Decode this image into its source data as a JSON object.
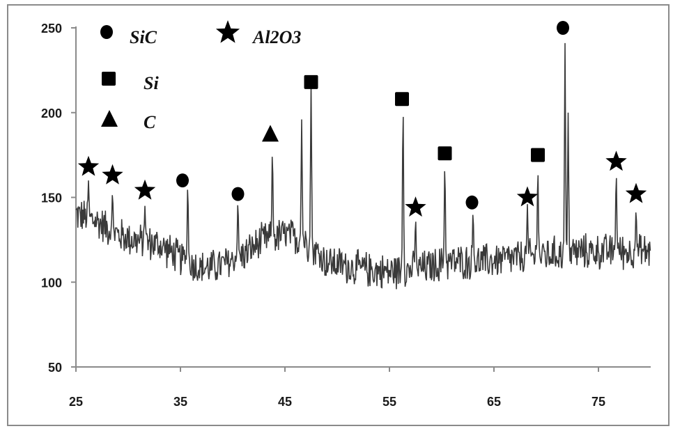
{
  "chart_data": {
    "type": "line",
    "title": "",
    "xlabel": "",
    "ylabel": "",
    "xlim": [
      25,
      80
    ],
    "ylim": [
      50,
      255
    ],
    "x_ticks": [
      25,
      35,
      45,
      55,
      65,
      75
    ],
    "y_ticks": [
      50,
      100,
      150,
      200,
      250
    ],
    "grid": false,
    "line_color": "#3a3a3a",
    "legend": {
      "placement": "top-left",
      "entries": [
        {
          "marker": "circle",
          "label": "SiC"
        },
        {
          "marker": "star",
          "label": "Al2O3"
        },
        {
          "marker": "square",
          "label": "Si"
        },
        {
          "marker": "triangle",
          "label": "C"
        }
      ]
    },
    "series": [
      {
        "baseline": [
          [
            25,
            140
          ],
          [
            27,
            136
          ],
          [
            29,
            128
          ],
          [
            31,
            124
          ],
          [
            33,
            122
          ],
          [
            35,
            114
          ],
          [
            37,
            108
          ],
          [
            39,
            110
          ],
          [
            41,
            116
          ],
          [
            43,
            125
          ],
          [
            45,
            128
          ],
          [
            47,
            124
          ],
          [
            49,
            112
          ],
          [
            52,
            108
          ],
          [
            55,
            106
          ],
          [
            58,
            108
          ],
          [
            61,
            112
          ],
          [
            64,
            112
          ],
          [
            67,
            114
          ],
          [
            70,
            116
          ],
          [
            73,
            118
          ],
          [
            76,
            118
          ],
          [
            80,
            118
          ]
        ],
        "noise_amplitude": 12,
        "peaks": [
          {
            "x": 26.2,
            "y": 160
          },
          {
            "x": 28.5,
            "y": 153
          },
          {
            "x": 31.6,
            "y": 145
          },
          {
            "x": 35.7,
            "y": 158
          },
          {
            "x": 40.5,
            "y": 148
          },
          {
            "x": 43.8,
            "y": 178
          },
          {
            "x": 46.6,
            "y": 196
          },
          {
            "x": 47.5,
            "y": 218
          },
          {
            "x": 56.3,
            "y": 205
          },
          {
            "x": 57.5,
            "y": 138
          },
          {
            "x": 60.3,
            "y": 170
          },
          {
            "x": 63.0,
            "y": 142
          },
          {
            "x": 68.2,
            "y": 146
          },
          {
            "x": 69.2,
            "y": 167
          },
          {
            "x": 71.8,
            "y": 241
          },
          {
            "x": 72.1,
            "y": 200
          },
          {
            "x": 76.7,
            "y": 165
          },
          {
            "x": 78.6,
            "y": 143
          }
        ]
      }
    ],
    "annotations": [
      {
        "marker": "star",
        "x": 26.2,
        "y": 168
      },
      {
        "marker": "star",
        "x": 28.5,
        "y": 163
      },
      {
        "marker": "star",
        "x": 31.6,
        "y": 154
      },
      {
        "marker": "circle",
        "x": 35.2,
        "y": 160
      },
      {
        "marker": "circle",
        "x": 40.5,
        "y": 152
      },
      {
        "marker": "triangle",
        "x": 43.6,
        "y": 187
      },
      {
        "marker": "square",
        "x": 47.5,
        "y": 218
      },
      {
        "marker": "square",
        "x": 56.2,
        "y": 208
      },
      {
        "marker": "star",
        "x": 57.5,
        "y": 144
      },
      {
        "marker": "square",
        "x": 60.3,
        "y": 176
      },
      {
        "marker": "circle",
        "x": 62.9,
        "y": 147
      },
      {
        "marker": "star",
        "x": 68.2,
        "y": 150
      },
      {
        "marker": "square",
        "x": 69.2,
        "y": 175
      },
      {
        "marker": "circle",
        "x": 71.6,
        "y": 250
      },
      {
        "marker": "star",
        "x": 76.7,
        "y": 171
      },
      {
        "marker": "star",
        "x": 78.6,
        "y": 152
      }
    ]
  }
}
